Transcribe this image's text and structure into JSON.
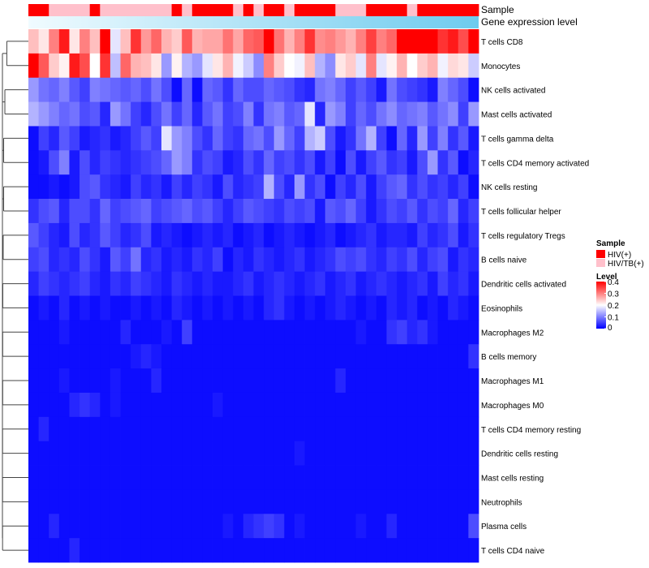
{
  "colors": {
    "hiv": "#ff0000",
    "hiv_tb": "#ffc0cb",
    "level_low": "#0000ff",
    "level_mid": "#ffffff",
    "level_high": "#ff0000",
    "dendrogram": "#444444",
    "gel_light": "#f0fbff",
    "gel_dark": "#6ecbee"
  },
  "chart_data": {
    "type": "heatmap",
    "annotations": [
      {
        "name": "Sample"
      },
      {
        "name": "Gene expression level"
      }
    ],
    "rows": [
      "T cells CD8",
      "Monocytes",
      "NK cells activated",
      "Mast cells activated",
      "T cells gamma delta",
      "T cells CD4 memory activated",
      "NK cells resting",
      "T cells follicular helper",
      "T cells regulatory  Tregs",
      "B cells naive",
      "Dendritic cells activated",
      "Eosinophils",
      "Macrophages M2",
      "B cells memory",
      "Macrophages M1",
      "Macrophages M0",
      "T cells CD4 memory resting",
      "Dendritic cells resting",
      "Mast cells resting",
      "Neutrophils",
      "Plasma cells",
      "T cells CD4 naive"
    ],
    "sample_groups": [
      "HIV(+)",
      "HIV(+)",
      "HIV/TB(+)",
      "HIV/TB(+)",
      "HIV/TB(+)",
      "HIV/TB(+)",
      "HIV(+)",
      "HIV/TB(+)",
      "HIV/TB(+)",
      "HIV/TB(+)",
      "HIV/TB(+)",
      "HIV/TB(+)",
      "HIV/TB(+)",
      "HIV/TB(+)",
      "HIV(+)",
      "HIV/TB(+)",
      "HIV(+)",
      "HIV(+)",
      "HIV(+)",
      "HIV(+)",
      "HIV/TB(+)",
      "HIV(+)",
      "HIV/TB(+)",
      "HIV(+)",
      "HIV(+)",
      "HIV/TB(+)",
      "HIV(+)",
      "HIV(+)",
      "HIV(+)",
      "HIV(+)",
      "HIV/TB(+)",
      "HIV/TB(+)",
      "HIV/TB(+)",
      "HIV(+)",
      "HIV(+)",
      "HIV(+)",
      "HIV(+)",
      "HIV/TB(+)",
      "HIV(+)",
      "HIV(+)",
      "HIV(+)",
      "HIV(+)",
      "HIV(+)",
      "HIV(+)"
    ],
    "values": [
      [
        0.25,
        0.22,
        0.3,
        0.38,
        0.22,
        0.3,
        0.25,
        0.4,
        0.18,
        0.25,
        0.36,
        0.28,
        0.32,
        0.26,
        0.24,
        0.33,
        0.26,
        0.27,
        0.27,
        0.31,
        0.27,
        0.32,
        0.33,
        0.42,
        0.31,
        0.26,
        0.3,
        0.36,
        0.29,
        0.3,
        0.28,
        0.26,
        0.3,
        0.35,
        0.3,
        0.32,
        0.4,
        0.42,
        0.41,
        0.4,
        0.36,
        0.38,
        0.34,
        0.4
      ],
      [
        0.42,
        0.33,
        0.24,
        0.21,
        0.38,
        0.34,
        0.2,
        0.36,
        0.15,
        0.32,
        0.26,
        0.25,
        0.22,
        0.12,
        0.21,
        0.14,
        0.12,
        0.18,
        0.22,
        0.26,
        0.19,
        0.16,
        0.11,
        0.3,
        0.24,
        0.2,
        0.19,
        0.25,
        0.14,
        0.11,
        0.22,
        0.24,
        0.18,
        0.3,
        0.18,
        0.21,
        0.26,
        0.2,
        0.24,
        0.26,
        0.19,
        0.23,
        0.22,
        0.16
      ],
      [
        0.12,
        0.09,
        0.08,
        0.1,
        0.07,
        0.05,
        0.1,
        0.09,
        0.08,
        0.07,
        0.08,
        0.06,
        0.09,
        0.06,
        0.01,
        0.08,
        0.01,
        0.08,
        0.07,
        0.04,
        0.08,
        0.06,
        0.06,
        0.08,
        0.07,
        0.06,
        0.04,
        0.03,
        0.09,
        0.1,
        0.08,
        0.05,
        0.07,
        0.05,
        0.02,
        0.09,
        0.06,
        0.05,
        0.04,
        0.02,
        0.1,
        0.08,
        0.06,
        0.01
      ],
      [
        0.14,
        0.12,
        0.1,
        0.08,
        0.09,
        0.06,
        0.07,
        0.03,
        0.12,
        0.09,
        0.05,
        0.03,
        0.06,
        0.09,
        0.05,
        0.08,
        0.03,
        0.07,
        0.09,
        0.05,
        0.06,
        0.1,
        0.04,
        0.09,
        0.1,
        0.07,
        0.08,
        0.18,
        0.03,
        0.12,
        0.1,
        0.05,
        0.08,
        0.06,
        0.09,
        0.11,
        0.08,
        0.09,
        0.1,
        0.07,
        0.09,
        0.11,
        0.05,
        0.12
      ],
      [
        0.01,
        0.05,
        0.03,
        0.07,
        0.05,
        0.02,
        0.03,
        0.04,
        0.02,
        0.03,
        0.05,
        0.07,
        0.05,
        0.18,
        0.12,
        0.1,
        0.06,
        0.04,
        0.08,
        0.05,
        0.04,
        0.08,
        0.09,
        0.06,
        0.12,
        0.08,
        0.05,
        0.14,
        0.16,
        0.06,
        0.02,
        0.04,
        0.09,
        0.14,
        0.05,
        0.01,
        0.08,
        0.03,
        0.12,
        0.05,
        0.1,
        0.04,
        0.07,
        0.02
      ],
      [
        0.01,
        0.02,
        0.06,
        0.1,
        0.02,
        0.06,
        0.03,
        0.05,
        0.04,
        0.03,
        0.04,
        0.05,
        0.06,
        0.08,
        0.12,
        0.1,
        0.04,
        0.06,
        0.05,
        0.02,
        0.03,
        0.06,
        0.04,
        0.08,
        0.05,
        0.06,
        0.04,
        0.06,
        0.02,
        0.05,
        0.01,
        0.06,
        0.02,
        0.05,
        0.07,
        0.04,
        0.05,
        0.02,
        0.06,
        0.12,
        0.04,
        0.07,
        0.01,
        0.03
      ],
      [
        0.01,
        0.01,
        0.02,
        0.01,
        0.02,
        0.06,
        0.07,
        0.04,
        0.03,
        0.02,
        0.05,
        0.03,
        0.04,
        0.02,
        0.05,
        0.03,
        0.05,
        0.04,
        0.02,
        0.06,
        0.03,
        0.04,
        0.05,
        0.14,
        0.06,
        0.03,
        0.12,
        0.04,
        0.06,
        0.01,
        0.05,
        0.03,
        0.06,
        0.02,
        0.05,
        0.07,
        0.08,
        0.04,
        0.06,
        0.04,
        0.05,
        0.03,
        0.05,
        0.01
      ],
      [
        0.04,
        0.06,
        0.07,
        0.03,
        0.06,
        0.06,
        0.04,
        0.08,
        0.05,
        0.06,
        0.07,
        0.08,
        0.05,
        0.06,
        0.07,
        0.08,
        0.06,
        0.07,
        0.05,
        0.03,
        0.05,
        0.07,
        0.06,
        0.05,
        0.04,
        0.06,
        0.05,
        0.06,
        0.02,
        0.07,
        0.06,
        0.08,
        0.05,
        0.02,
        0.04,
        0.06,
        0.05,
        0.07,
        0.04,
        0.06,
        0.05,
        0.08,
        0.03,
        0.05
      ],
      [
        0.07,
        0.05,
        0.03,
        0.02,
        0.06,
        0.03,
        0.04,
        0.07,
        0.05,
        0.03,
        0.04,
        0.06,
        0.02,
        0.03,
        0.02,
        0.01,
        0.02,
        0.03,
        0.02,
        0.03,
        0.01,
        0.02,
        0.03,
        0.01,
        0.02,
        0.03,
        0.02,
        0.01,
        0.02,
        0.03,
        0.01,
        0.02,
        0.03,
        0.04,
        0.02,
        0.03,
        0.03,
        0.02,
        0.05,
        0.03,
        0.04,
        0.06,
        0.02,
        0.04
      ],
      [
        0.05,
        0.06,
        0.03,
        0.04,
        0.03,
        0.06,
        0.04,
        0.02,
        0.07,
        0.05,
        0.09,
        0.03,
        0.04,
        0.02,
        0.03,
        0.02,
        0.04,
        0.03,
        0.05,
        0.01,
        0.03,
        0.02,
        0.04,
        0.03,
        0.02,
        0.03,
        0.04,
        0.02,
        0.03,
        0.04,
        0.06,
        0.05,
        0.06,
        0.04,
        0.03,
        0.05,
        0.04,
        0.06,
        0.03,
        0.05,
        0.06,
        0.02,
        0.04,
        0.03
      ],
      [
        0.03,
        0.05,
        0.04,
        0.03,
        0.04,
        0.05,
        0.03,
        0.02,
        0.04,
        0.03,
        0.05,
        0.04,
        0.03,
        0.02,
        0.04,
        0.03,
        0.02,
        0.03,
        0.02,
        0.02,
        0.03,
        0.04,
        0.02,
        0.03,
        0.04,
        0.03,
        0.02,
        0.03,
        0.04,
        0.02,
        0.03,
        0.04,
        0.02,
        0.03,
        0.04,
        0.03,
        0.02,
        0.03,
        0.04,
        0.02,
        0.05,
        0.03,
        0.04,
        0.02
      ],
      [
        0.01,
        0.02,
        0.01,
        0.03,
        0.01,
        0.02,
        0.01,
        0.02,
        0.01,
        0.01,
        0.02,
        0.01,
        0.02,
        0.01,
        0.03,
        0.02,
        0.01,
        0.02,
        0.01,
        0.02,
        0.01,
        0.02,
        0.01,
        0.03,
        0.04,
        0.02,
        0.01,
        0.02,
        0.01,
        0.02,
        0.03,
        0.02,
        0.01,
        0.02,
        0.01,
        0.03,
        0.02,
        0.03,
        0.01,
        0.02,
        0.01,
        0.03,
        0.02,
        0.01
      ],
      [
        0.01,
        0.01,
        0.01,
        0.02,
        0.01,
        0.01,
        0.01,
        0.01,
        0.01,
        0.03,
        0.01,
        0.01,
        0.01,
        0.02,
        0.01,
        0.05,
        0.01,
        0.01,
        0.01,
        0.01,
        0.01,
        0.01,
        0.01,
        0.01,
        0.01,
        0.01,
        0.01,
        0.01,
        0.01,
        0.01,
        0.01,
        0.01,
        0.02,
        0.01,
        0.01,
        0.04,
        0.05,
        0.03,
        0.04,
        0.02,
        0.01,
        0.01,
        0.01,
        0.01
      ],
      [
        0.01,
        0.01,
        0.01,
        0.01,
        0.01,
        0.01,
        0.01,
        0.01,
        0.01,
        0.01,
        0.02,
        0.03,
        0.02,
        0.01,
        0.01,
        0.01,
        0.01,
        0.01,
        0.01,
        0.01,
        0.01,
        0.01,
        0.01,
        0.01,
        0.01,
        0.01,
        0.01,
        0.01,
        0.01,
        0.01,
        0.01,
        0.01,
        0.01,
        0.01,
        0.01,
        0.01,
        0.01,
        0.01,
        0.01,
        0.01,
        0.01,
        0.01,
        0.01,
        0.04
      ],
      [
        0.01,
        0.01,
        0.01,
        0.02,
        0.01,
        0.01,
        0.01,
        0.01,
        0.02,
        0.01,
        0.01,
        0.01,
        0.03,
        0.01,
        0.01,
        0.01,
        0.01,
        0.01,
        0.01,
        0.01,
        0.01,
        0.01,
        0.01,
        0.01,
        0.01,
        0.01,
        0.01,
        0.01,
        0.01,
        0.01,
        0.03,
        0.01,
        0.01,
        0.01,
        0.01,
        0.01,
        0.01,
        0.01,
        0.01,
        0.01,
        0.01,
        0.01,
        0.01,
        0.01
      ],
      [
        0.01,
        0.01,
        0.01,
        0.01,
        0.03,
        0.04,
        0.03,
        0.01,
        0.02,
        0.01,
        0.01,
        0.01,
        0.01,
        0.01,
        0.01,
        0.01,
        0.01,
        0.01,
        0.02,
        0.01,
        0.01,
        0.01,
        0.01,
        0.01,
        0.01,
        0.01,
        0.01,
        0.01,
        0.01,
        0.01,
        0.01,
        0.01,
        0.01,
        0.01,
        0.01,
        0.01,
        0.01,
        0.01,
        0.01,
        0.01,
        0.01,
        0.01,
        0.01,
        0.01
      ],
      [
        0.01,
        0.03,
        0.01,
        0.01,
        0.01,
        0.01,
        0.01,
        0.01,
        0.01,
        0.01,
        0.01,
        0.01,
        0.01,
        0.01,
        0.01,
        0.01,
        0.01,
        0.01,
        0.01,
        0.01,
        0.01,
        0.01,
        0.01,
        0.01,
        0.01,
        0.01,
        0.01,
        0.01,
        0.01,
        0.01,
        0.01,
        0.01,
        0.01,
        0.01,
        0.01,
        0.01,
        0.01,
        0.01,
        0.01,
        0.01,
        0.01,
        0.01,
        0.01,
        0.01
      ],
      [
        0.01,
        0.01,
        0.01,
        0.01,
        0.01,
        0.01,
        0.01,
        0.01,
        0.01,
        0.01,
        0.01,
        0.01,
        0.01,
        0.01,
        0.01,
        0.01,
        0.01,
        0.01,
        0.01,
        0.01,
        0.01,
        0.01,
        0.01,
        0.01,
        0.01,
        0.01,
        0.02,
        0.01,
        0.01,
        0.01,
        0.01,
        0.01,
        0.01,
        0.01,
        0.01,
        0.01,
        0.01,
        0.01,
        0.01,
        0.01,
        0.01,
        0.01,
        0.01,
        0.01
      ],
      [
        0.01,
        0.01,
        0.01,
        0.01,
        0.01,
        0.01,
        0.01,
        0.01,
        0.01,
        0.01,
        0.01,
        0.01,
        0.01,
        0.01,
        0.01,
        0.01,
        0.01,
        0.01,
        0.01,
        0.01,
        0.01,
        0.01,
        0.01,
        0.01,
        0.01,
        0.01,
        0.01,
        0.01,
        0.01,
        0.01,
        0.01,
        0.01,
        0.01,
        0.01,
        0.01,
        0.01,
        0.01,
        0.01,
        0.01,
        0.01,
        0.01,
        0.01,
        0.01,
        0.01
      ],
      [
        0.01,
        0.01,
        0.01,
        0.01,
        0.01,
        0.01,
        0.01,
        0.01,
        0.01,
        0.01,
        0.01,
        0.01,
        0.01,
        0.01,
        0.01,
        0.01,
        0.01,
        0.01,
        0.01,
        0.01,
        0.01,
        0.01,
        0.01,
        0.01,
        0.01,
        0.01,
        0.01,
        0.01,
        0.01,
        0.01,
        0.01,
        0.01,
        0.01,
        0.01,
        0.01,
        0.01,
        0.01,
        0.01,
        0.01,
        0.01,
        0.01,
        0.01,
        0.01,
        0.01
      ],
      [
        0.01,
        0.01,
        0.03,
        0.01,
        0.01,
        0.01,
        0.01,
        0.01,
        0.01,
        0.01,
        0.01,
        0.01,
        0.01,
        0.01,
        0.01,
        0.01,
        0.01,
        0.01,
        0.01,
        0.02,
        0.01,
        0.03,
        0.04,
        0.05,
        0.04,
        0.01,
        0.02,
        0.01,
        0.01,
        0.01,
        0.01,
        0.01,
        0.02,
        0.01,
        0.01,
        0.03,
        0.01,
        0.01,
        0.01,
        0.01,
        0.01,
        0.01,
        0.01,
        0.06
      ],
      [
        0.01,
        0.01,
        0.01,
        0.01,
        0.03,
        0.01,
        0.01,
        0.01,
        0.01,
        0.01,
        0.01,
        0.01,
        0.01,
        0.01,
        0.01,
        0.01,
        0.01,
        0.01,
        0.01,
        0.01,
        0.01,
        0.01,
        0.01,
        0.01,
        0.01,
        0.01,
        0.01,
        0.01,
        0.01,
        0.01,
        0.01,
        0.01,
        0.01,
        0.01,
        0.01,
        0.01,
        0.01,
        0.01,
        0.01,
        0.01,
        0.01,
        0.01,
        0.01,
        0.01
      ]
    ],
    "legend": {
      "sample_title": "Sample",
      "sample_entries": [
        "HIV(+)",
        "HIV/TB(+)"
      ],
      "level_title": "Level",
      "level_ticks": [
        0,
        0.1,
        0.2,
        0.3,
        0.4
      ],
      "level_tick_labels": [
        "0",
        "0.1",
        "0.2",
        "0.3",
        "0.4"
      ],
      "level_range": [
        0,
        0.4
      ]
    }
  }
}
